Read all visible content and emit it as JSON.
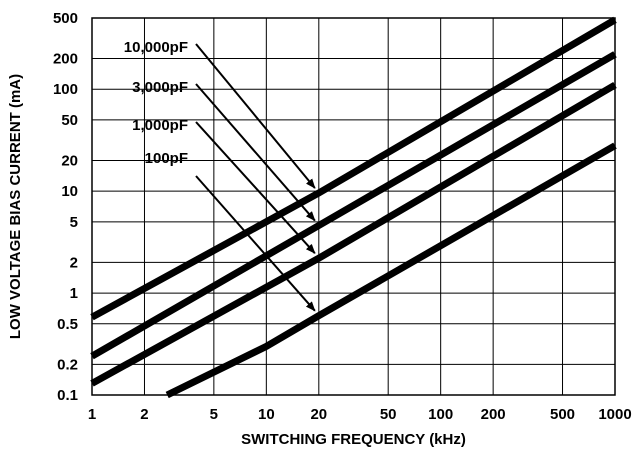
{
  "chart_data": {
    "type": "line",
    "title": "",
    "xlabel": "SWITCHING FREQUENCY (kHz)",
    "ylabel": "LOW VOLTAGE BIAS CURRENT (mA)",
    "xscale": "log",
    "yscale": "log",
    "xlim": [
      1,
      1000
    ],
    "ylim": [
      0.1,
      500
    ],
    "grid": true,
    "x_ticks": [
      1,
      2,
      5,
      10,
      20,
      50,
      100,
      200,
      500,
      1000
    ],
    "x_tick_labels": [
      "1",
      "2",
      "5",
      "10",
      "20",
      "50",
      "100",
      "200",
      "500",
      "1000"
    ],
    "y_ticks": [
      0.1,
      0.2,
      0.5,
      1,
      2,
      5,
      10,
      20,
      50,
      100,
      200,
      500
    ],
    "y_tick_labels": [
      "0.1",
      "0.2",
      "0.5",
      "1",
      "2",
      "5",
      "10",
      "20",
      "50",
      "100",
      "200",
      "500"
    ],
    "series": [
      {
        "name": "10,000pF",
        "x": [
          1,
          20,
          1000
        ],
        "y": [
          0.58,
          9.6,
          480
        ]
      },
      {
        "name": "3,000pF",
        "x": [
          1,
          20,
          1000
        ],
        "y": [
          0.24,
          4.6,
          220
        ]
      },
      {
        "name": "1,000pF",
        "x": [
          1,
          20,
          1000
        ],
        "y": [
          0.13,
          2.2,
          110
        ]
      },
      {
        "name": "100pF",
        "x": [
          2.7,
          10,
          20,
          1000
        ],
        "y": [
          0.1,
          0.3,
          0.6,
          28
        ]
      }
    ]
  }
}
